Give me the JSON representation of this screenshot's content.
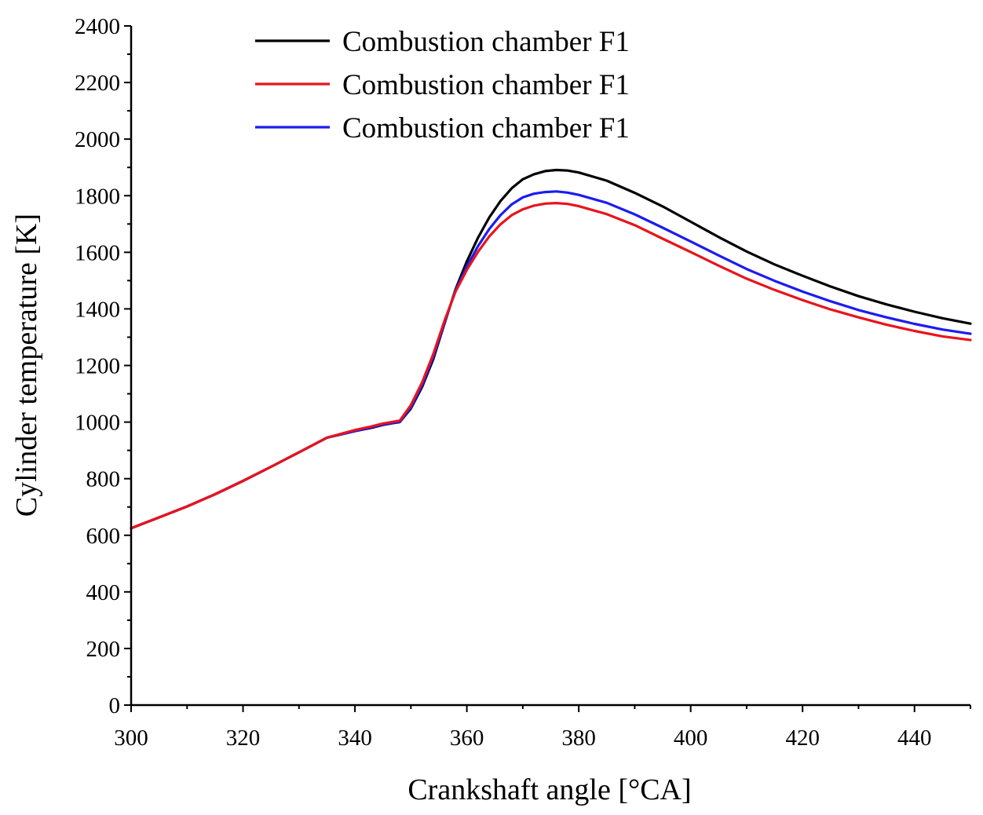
{
  "chart_data": {
    "type": "line",
    "title": "",
    "xlabel": "Crankshaft angle [°CA]",
    "ylabel": "Cylinder temperature [K]",
    "xlim": [
      300,
      450
    ],
    "ylim": [
      0,
      2400
    ],
    "xticks": [
      300,
      320,
      340,
      360,
      380,
      400,
      420,
      440
    ],
    "yticks": [
      0,
      200,
      400,
      600,
      800,
      1000,
      1200,
      1400,
      1600,
      1800,
      2000,
      2200,
      2400
    ],
    "grid": false,
    "legend_position": "top",
    "x": [
      300,
      305,
      310,
      315,
      320,
      325,
      330,
      335,
      340,
      343,
      345,
      347,
      348,
      350,
      352,
      354,
      356,
      358,
      360,
      362,
      364,
      366,
      368,
      370,
      372,
      374,
      376,
      378,
      380,
      385,
      390,
      395,
      400,
      405,
      410,
      415,
      420,
      425,
      430,
      435,
      440,
      445,
      450
    ],
    "series": [
      {
        "name": "Combustion chamber F1",
        "color": "#000000",
        "values": [
          625,
          663,
          702,
          745,
          792,
          842,
          893,
          945,
          968,
          980,
          990,
          997,
          1000,
          1048,
          1124,
          1222,
          1348,
          1470,
          1568,
          1652,
          1723,
          1781,
          1826,
          1858,
          1876,
          1887,
          1891,
          1889,
          1882,
          1853,
          1810,
          1762,
          1708,
          1654,
          1603,
          1557,
          1517,
          1479,
          1445,
          1416,
          1390,
          1367,
          1348
        ]
      },
      {
        "name": "Combustion chamber F1",
        "color": "#e8141c",
        "values": [
          625,
          663,
          702,
          745,
          792,
          842,
          893,
          945,
          972,
          985,
          995,
          1002,
          1005,
          1060,
          1140,
          1240,
          1358,
          1462,
          1538,
          1602,
          1656,
          1699,
          1731,
          1752,
          1765,
          1772,
          1774,
          1771,
          1763,
          1735,
          1696,
          1648,
          1601,
          1553,
          1507,
          1467,
          1431,
          1398,
          1370,
          1344,
          1322,
          1303,
          1290
        ]
      },
      {
        "name": "Combustion chamber F1",
        "color": "#1c1cf0",
        "values": [
          625,
          663,
          702,
          745,
          792,
          842,
          893,
          945,
          968,
          982,
          991,
          998,
          1001,
          1052,
          1130,
          1230,
          1352,
          1466,
          1550,
          1622,
          1682,
          1731,
          1769,
          1794,
          1807,
          1813,
          1815,
          1811,
          1803,
          1775,
          1734,
          1687,
          1638,
          1589,
          1541,
          1499,
          1461,
          1427,
          1396,
          1370,
          1347,
          1327,
          1312
        ]
      }
    ]
  }
}
